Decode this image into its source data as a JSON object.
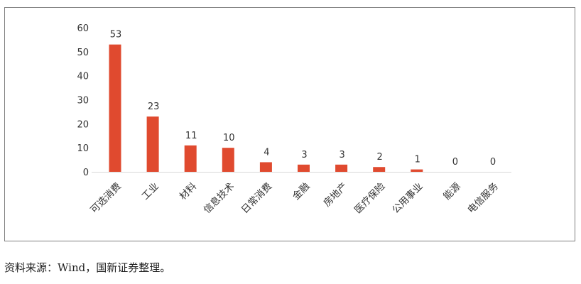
{
  "chart_data": {
    "type": "bar",
    "categories": [
      "可选消费",
      "工业",
      "材料",
      "信息技术",
      "日常消费",
      "金融",
      "房地产",
      "医疗保险",
      "公用事业",
      "能源",
      "电信服务"
    ],
    "values": [
      53,
      23,
      11,
      10,
      4,
      3,
      3,
      2,
      1,
      0,
      0
    ],
    "data_labels": [
      "53",
      "23",
      "11",
      "10",
      "4",
      "3",
      "3",
      "2",
      "1",
      "0",
      "0"
    ],
    "ylim": [
      0,
      60
    ],
    "yticks": [
      "0",
      "10",
      "20",
      "30",
      "40",
      "50",
      "60"
    ],
    "bar_color": "#e04a2f",
    "grid": false,
    "legend": "none"
  },
  "source_note": "资料来源：Wind，国新证券整理。"
}
